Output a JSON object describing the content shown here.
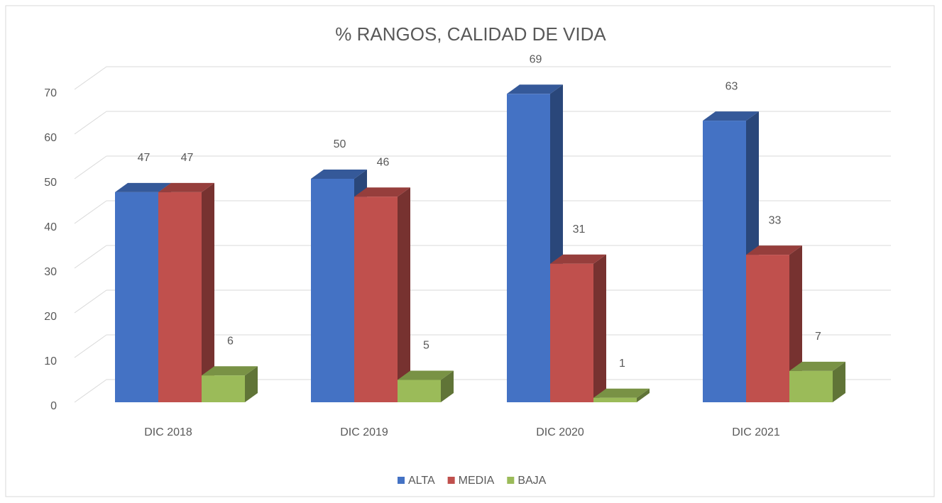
{
  "chart_data": {
    "type": "bar3d",
    "title": "% RANGOS, CALIDAD DE VIDA",
    "categories": [
      "DIC 2018",
      "DIC 2019",
      "DIC 2020",
      "DIC 2021"
    ],
    "series": [
      {
        "name": "ALTA",
        "color": "#4472c4",
        "values": [
          47,
          50,
          69,
          63
        ]
      },
      {
        "name": "MEDIA",
        "color": "#c0504d",
        "values": [
          47,
          46,
          31,
          33
        ]
      },
      {
        "name": "BAJA",
        "color": "#9bbb59",
        "values": [
          6,
          5,
          1,
          7
        ]
      }
    ],
    "ylim": [
      0,
      70
    ],
    "yticks": [
      0,
      10,
      20,
      30,
      40,
      50,
      60,
      70
    ],
    "grid": true,
    "legend": "bottom"
  }
}
